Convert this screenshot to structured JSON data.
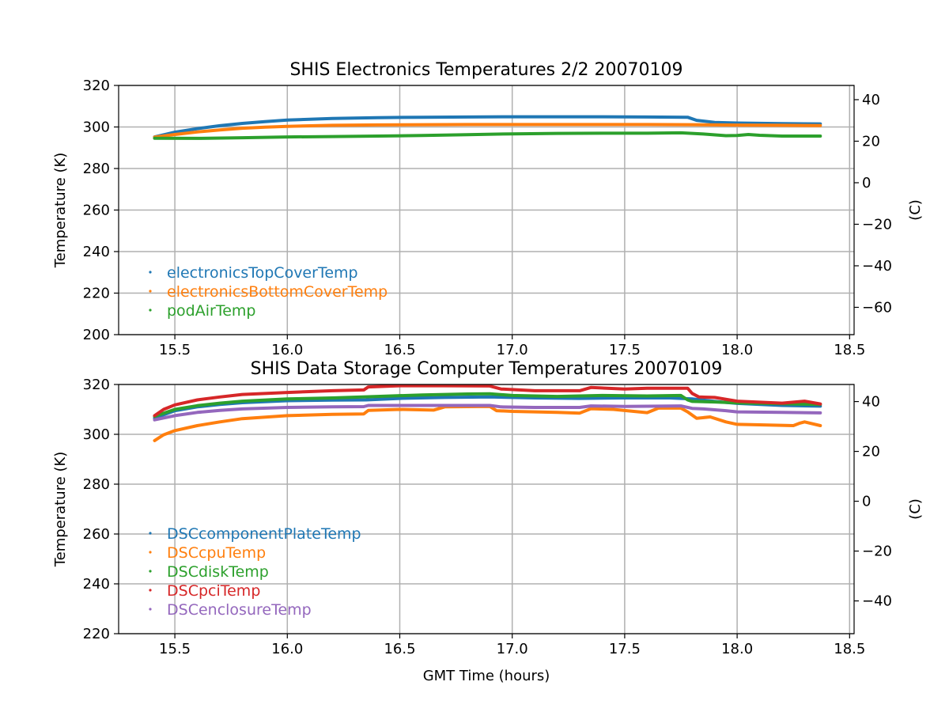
{
  "chart_data": [
    {
      "type": "scatter",
      "title": "SHIS Electronics Temperatures 2/2 20070109",
      "xlabel": "",
      "ylabel": "Temperature (K)",
      "y2label": "(C)",
      "xlim": [
        15.25,
        18.52
      ],
      "ylim": [
        200,
        320
      ],
      "y2lim": [
        -73.15,
        46.85
      ],
      "xticks": [
        15.5,
        16.0,
        16.5,
        17.0,
        17.5,
        18.0,
        18.5
      ],
      "xtick_labels": [
        "15.5",
        "16.0",
        "16.5",
        "17.0",
        "17.5",
        "18.0",
        "18.5"
      ],
      "yticks": [
        200,
        220,
        240,
        260,
        280,
        300,
        320
      ],
      "ytick_labels": [
        "200",
        "220",
        "240",
        "260",
        "280",
        "300",
        "320"
      ],
      "y2ticks": [
        -60,
        -40,
        -20,
        0,
        20,
        40
      ],
      "y2tick_labels": [
        "−60",
        "−40",
        "−20",
        "0",
        "20",
        "40"
      ],
      "grid": true,
      "legend_position": "lower-left",
      "series": [
        {
          "name": "electronicsTopCoverTemp",
          "color": "#1f77b4",
          "x": [
            15.41,
            15.5,
            15.6,
            15.7,
            15.8,
            15.9,
            16.0,
            16.2,
            16.4,
            16.6,
            16.8,
            17.0,
            17.2,
            17.4,
            17.6,
            17.78,
            17.82,
            17.9,
            18.0,
            18.2,
            18.37
          ],
          "y": [
            295.2,
            297.5,
            299.2,
            300.6,
            301.7,
            302.6,
            303.3,
            304.1,
            304.5,
            304.7,
            304.8,
            304.9,
            304.9,
            304.9,
            304.8,
            304.7,
            303.2,
            302.2,
            301.9,
            301.6,
            301.5
          ]
        },
        {
          "name": "electronicsBottomCoverTemp",
          "color": "#ff7f0e",
          "x": [
            15.41,
            15.5,
            15.6,
            15.7,
            15.8,
            15.9,
            16.0,
            16.2,
            16.4,
            16.6,
            16.8,
            17.0,
            17.2,
            17.4,
            17.6,
            17.8,
            18.0,
            18.2,
            18.37
          ],
          "y": [
            295.1,
            296.4,
            297.6,
            298.6,
            299.4,
            299.9,
            300.3,
            300.8,
            301.0,
            301.1,
            301.2,
            301.2,
            301.2,
            301.2,
            301.2,
            301.1,
            300.9,
            300.8,
            300.7
          ]
        },
        {
          "name": "podAirTemp",
          "color": "#2ca02c",
          "x": [
            15.41,
            15.6,
            15.8,
            16.0,
            16.2,
            16.4,
            16.6,
            16.8,
            17.0,
            17.2,
            17.4,
            17.6,
            17.75,
            17.85,
            17.95,
            18.0,
            18.05,
            18.1,
            18.2,
            18.37
          ],
          "y": [
            294.6,
            294.5,
            294.8,
            295.2,
            295.4,
            295.6,
            295.9,
            296.3,
            296.7,
            296.9,
            297.0,
            297.0,
            297.2,
            296.6,
            295.8,
            295.9,
            296.4,
            296.0,
            295.6,
            295.6
          ]
        }
      ]
    },
    {
      "type": "scatter",
      "title": "SHIS Data Storage Computer Temperatures 20070109",
      "xlabel": "GMT Time (hours)",
      "ylabel": "Temperature (K)",
      "y2label": "(C)",
      "xlim": [
        15.25,
        18.52
      ],
      "ylim": [
        220,
        320
      ],
      "y2lim": [
        -53.15,
        46.85
      ],
      "xticks": [
        15.5,
        16.0,
        16.5,
        17.0,
        17.5,
        18.0,
        18.5
      ],
      "xtick_labels": [
        "15.5",
        "16.0",
        "16.5",
        "17.0",
        "17.5",
        "18.0",
        "18.5"
      ],
      "yticks": [
        220,
        240,
        260,
        280,
        300,
        320
      ],
      "ytick_labels": [
        "220",
        "240",
        "260",
        "280",
        "300",
        "320"
      ],
      "y2ticks": [
        -40,
        -20,
        0,
        20,
        40
      ],
      "y2tick_labels": [
        "−40",
        "−20",
        "0",
        "20",
        "40"
      ],
      "grid": true,
      "legend_position": "lower-left",
      "series": [
        {
          "name": "DSCcomponentPlateTemp",
          "color": "#1f77b4",
          "x": [
            15.41,
            15.5,
            15.6,
            15.7,
            15.8,
            16.0,
            16.2,
            16.35,
            16.5,
            16.7,
            16.9,
            17.1,
            17.3,
            17.5,
            17.7,
            17.8,
            17.9,
            18.0,
            18.2,
            18.37
          ],
          "y": [
            306.5,
            309.5,
            311.0,
            312.0,
            312.7,
            313.5,
            313.7,
            313.8,
            314.4,
            314.8,
            315.0,
            314.6,
            314.4,
            314.6,
            314.6,
            314.2,
            313.2,
            312.4,
            311.6,
            311.3
          ]
        },
        {
          "name": "DSCcpuTemp",
          "color": "#ff7f0e",
          "x": [
            15.41,
            15.45,
            15.5,
            15.6,
            15.7,
            15.8,
            16.0,
            16.2,
            16.34,
            16.36,
            16.5,
            16.65,
            16.7,
            16.9,
            16.93,
            17.0,
            17.2,
            17.3,
            17.35,
            17.45,
            17.6,
            17.65,
            17.75,
            17.78,
            17.82,
            17.88,
            17.95,
            18.0,
            18.1,
            18.25,
            18.28,
            18.3,
            18.37
          ],
          "y": [
            297.5,
            299.8,
            301.5,
            303.5,
            305.0,
            306.3,
            307.5,
            308.0,
            308.2,
            309.6,
            310.0,
            309.7,
            311.0,
            311.2,
            309.5,
            309.2,
            308.8,
            308.5,
            310.3,
            310.0,
            308.7,
            310.5,
            310.5,
            309.0,
            306.4,
            307.0,
            305.0,
            304.0,
            303.8,
            303.5,
            304.5,
            305.0,
            303.5
          ]
        },
        {
          "name": "DSCdiskTemp",
          "color": "#2ca02c",
          "x": [
            15.41,
            15.5,
            15.6,
            15.7,
            15.8,
            16.0,
            16.2,
            16.4,
            16.6,
            16.8,
            16.9,
            17.0,
            17.2,
            17.4,
            17.6,
            17.75,
            17.78,
            17.8,
            17.9,
            18.0,
            18.2,
            18.37
          ],
          "y": [
            307.2,
            310.0,
            311.5,
            312.5,
            313.3,
            314.2,
            314.6,
            315.2,
            315.8,
            316.2,
            316.3,
            315.6,
            315.2,
            315.6,
            315.4,
            315.6,
            313.8,
            313.2,
            313.0,
            312.6,
            312.3,
            312.0
          ]
        },
        {
          "name": "DSCpciTemp",
          "color": "#d62728",
          "x": [
            15.41,
            15.45,
            15.5,
            15.6,
            15.7,
            15.8,
            16.0,
            16.2,
            16.34,
            16.36,
            16.5,
            16.7,
            16.9,
            16.95,
            17.1,
            17.3,
            17.35,
            17.5,
            17.6,
            17.78,
            17.8,
            17.83,
            17.9,
            18.0,
            18.2,
            18.3,
            18.37
          ],
          "y": [
            307.5,
            310.0,
            311.8,
            313.8,
            315.0,
            316.0,
            316.8,
            317.5,
            317.8,
            319.0,
            319.5,
            319.5,
            319.4,
            318.2,
            317.5,
            317.5,
            318.8,
            318.2,
            318.5,
            318.5,
            316.4,
            315.0,
            314.8,
            313.3,
            312.5,
            313.3,
            312.2
          ]
        },
        {
          "name": "DSCenclosureTemp",
          "color": "#9467bd",
          "x": [
            15.41,
            15.5,
            15.6,
            15.7,
            15.8,
            16.0,
            16.2,
            16.34,
            16.36,
            16.5,
            16.7,
            16.9,
            16.95,
            17.1,
            17.3,
            17.35,
            17.5,
            17.75,
            17.8,
            17.85,
            17.95,
            18.0,
            18.2,
            18.37
          ],
          "y": [
            305.8,
            307.5,
            308.8,
            309.6,
            310.2,
            310.8,
            311.0,
            311.1,
            311.6,
            311.6,
            311.6,
            311.6,
            311.0,
            310.8,
            310.8,
            311.4,
            311.2,
            311.4,
            310.4,
            310.2,
            309.5,
            309.0,
            308.8,
            308.6
          ]
        }
      ]
    }
  ]
}
